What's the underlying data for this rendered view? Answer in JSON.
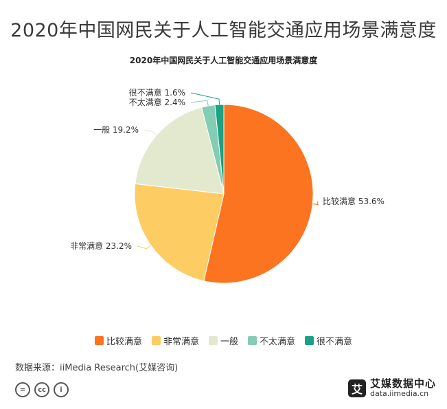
{
  "page": {
    "title": "2020年中国网民关于人工智能交通应用场景满意度",
    "source": "数据来源：iiMedia Research(艾媒咨询)"
  },
  "chart_data": {
    "type": "pie",
    "title": "2020年中国网民关于人工智能交通应用场景满意度",
    "slices": [
      {
        "label": "比较满意",
        "value": 53.6,
        "display": "比较满意 53.6%",
        "color": "#FC7320"
      },
      {
        "label": "非常满意",
        "value": 23.2,
        "display": "非常满意 23.2%",
        "color": "#FDCC62"
      },
      {
        "label": "一般",
        "value": 19.2,
        "display": "一般 19.2%",
        "color": "#E3E9CF"
      },
      {
        "label": "不太满意",
        "value": 2.4,
        "display": "不太满意 2.4%",
        "color": "#84CCB4"
      },
      {
        "label": "很不满意",
        "value": 1.6,
        "display": "很不满意 1.6%",
        "color": "#1AA186"
      }
    ],
    "legend_position": "bottom"
  },
  "footer": {
    "cc_icons": [
      "equals-icon",
      "cc-icon",
      "person-icon"
    ],
    "cc_glyphs": [
      "=",
      "cc",
      "i"
    ],
    "brand_logo": "艾",
    "brand_name": "艾媒数据中心",
    "brand_url": "data.iimedia.cn"
  }
}
